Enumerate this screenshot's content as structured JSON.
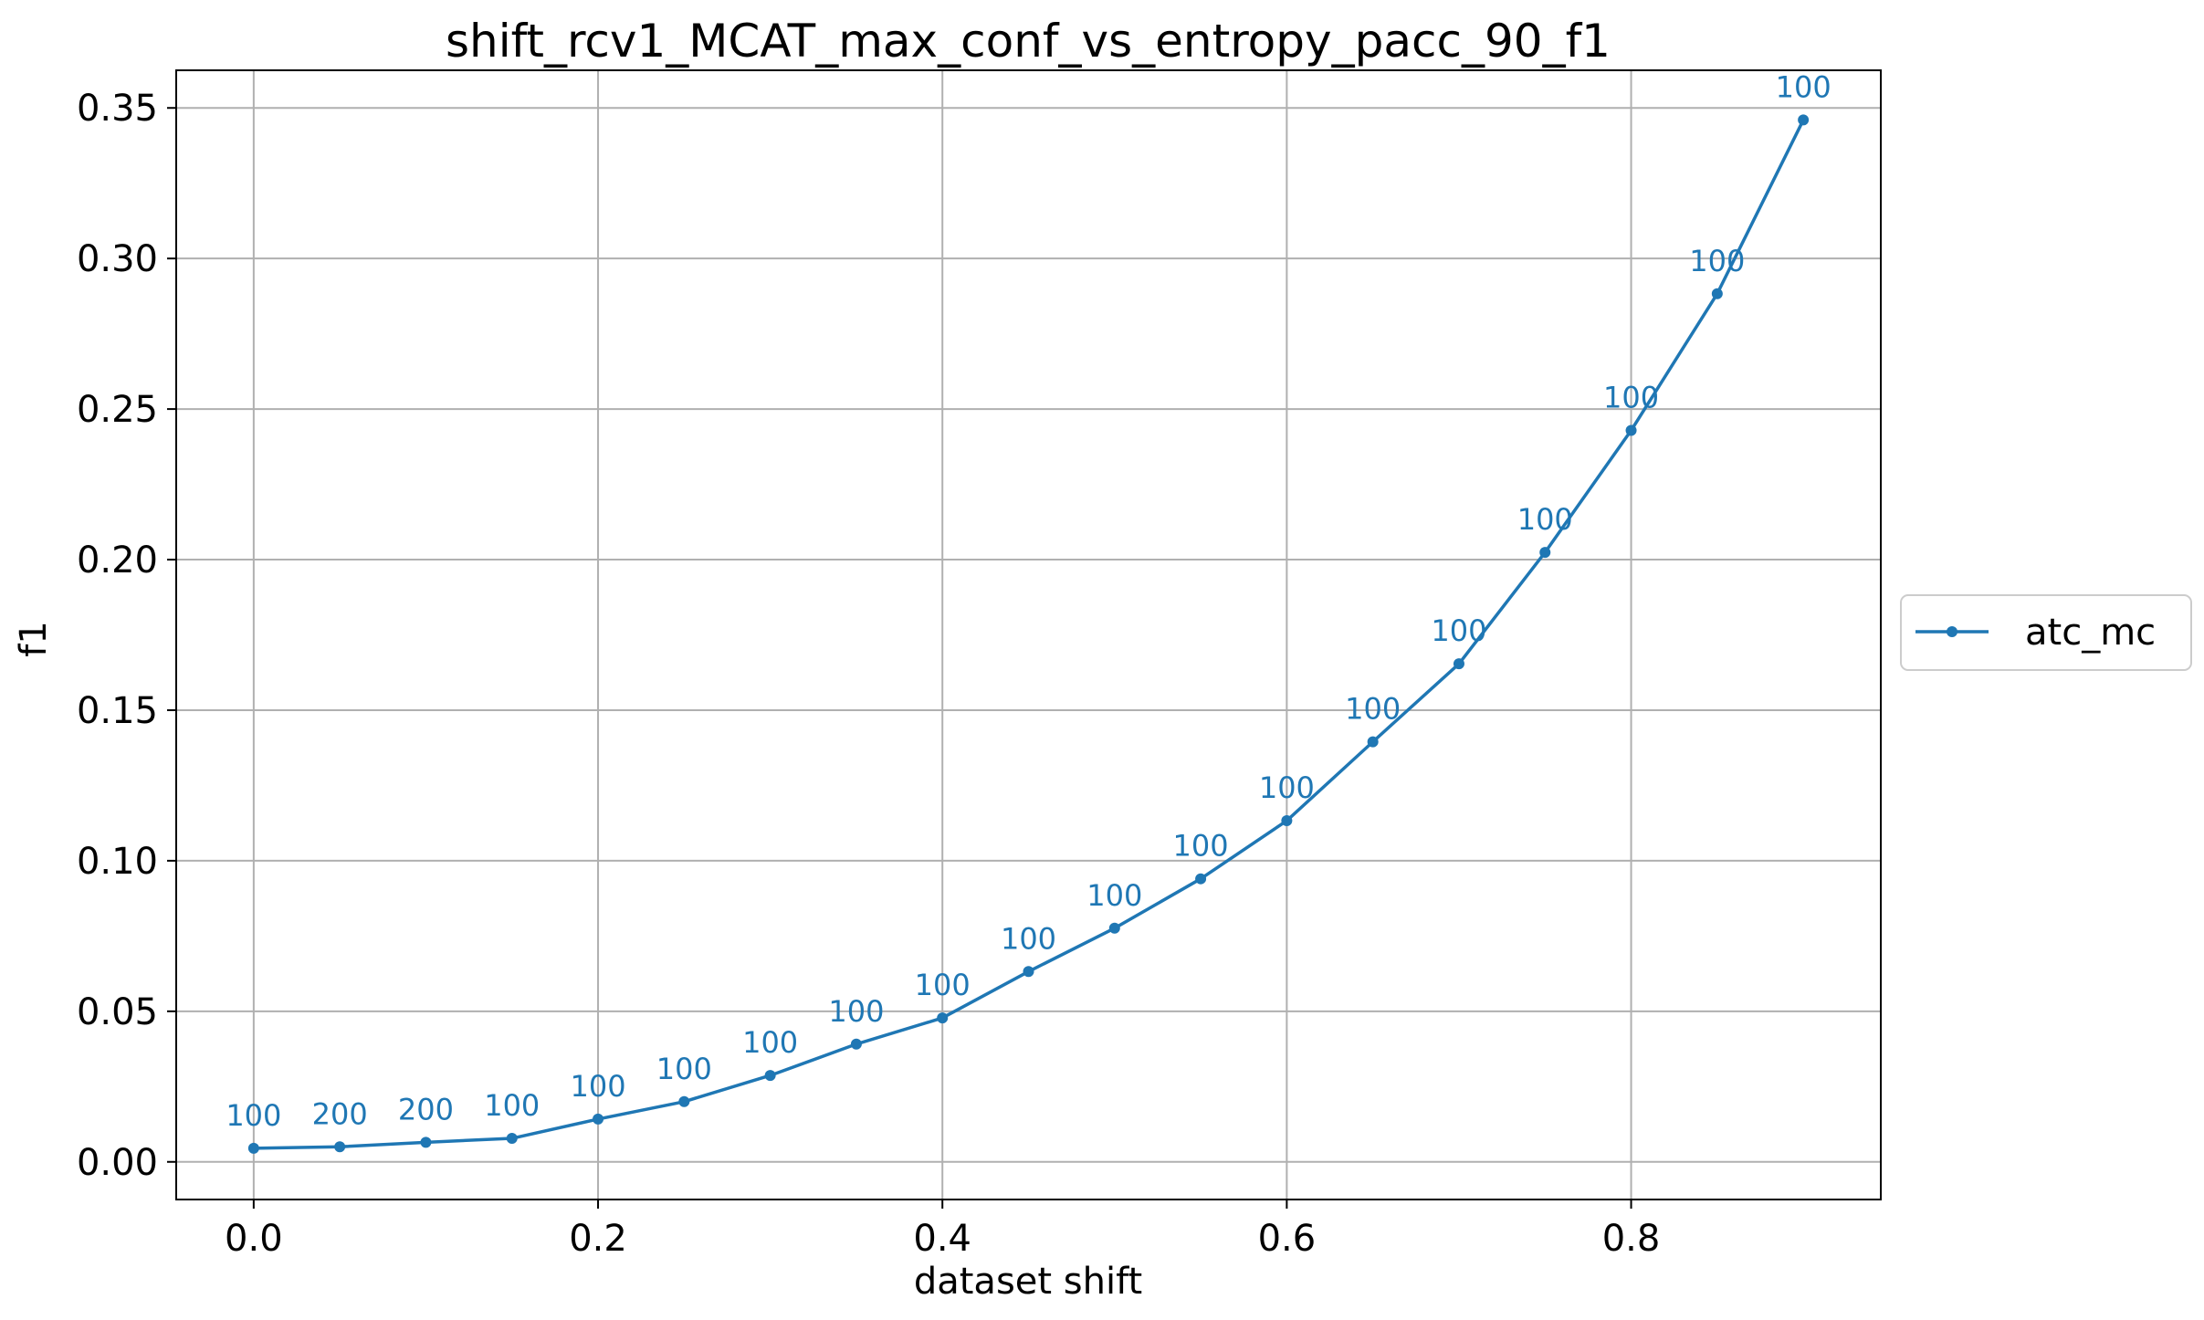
{
  "chart_data": {
    "type": "line",
    "title": "shift_rcv1_MCAT_max_conf_vs_entropy_pacc_90_f1",
    "xlabel": "dataset shift",
    "ylabel": "f1",
    "xlim": [
      -0.045,
      0.945
    ],
    "ylim": [
      -0.0125,
      0.3625
    ],
    "xticks": [
      0.0,
      0.2,
      0.4,
      0.6,
      0.8
    ],
    "xtick_labels": [
      "0.0",
      "0.2",
      "0.4",
      "0.6",
      "0.8"
    ],
    "yticks": [
      0.0,
      0.05,
      0.1,
      0.15,
      0.2,
      0.25,
      0.3,
      0.35
    ],
    "ytick_labels": [
      "0.00",
      "0.05",
      "0.10",
      "0.15",
      "0.20",
      "0.25",
      "0.30",
      "0.35"
    ],
    "grid": true,
    "legend_position": "right-center",
    "series": [
      {
        "name": "atc_mc",
        "color": "#1f77b4",
        "x": [
          0.0,
          0.05,
          0.1,
          0.15,
          0.2,
          0.25,
          0.3,
          0.35,
          0.4,
          0.45,
          0.5,
          0.55,
          0.6,
          0.65,
          0.7,
          0.75,
          0.8,
          0.85,
          0.9
        ],
        "y": [
          0.0045,
          0.005,
          0.0065,
          0.0078,
          0.0142,
          0.02,
          0.0287,
          0.0391,
          0.0478,
          0.0632,
          0.0776,
          0.094,
          0.1133,
          0.1395,
          0.1654,
          0.2024,
          0.2429,
          0.2883,
          0.346
        ],
        "labels": [
          "100",
          "200",
          "200",
          "100",
          "100",
          "100",
          "100",
          "100",
          "100",
          "100",
          "100",
          "100",
          "100",
          "100",
          "100",
          "100",
          "100",
          "100",
          "100"
        ]
      }
    ]
  }
}
